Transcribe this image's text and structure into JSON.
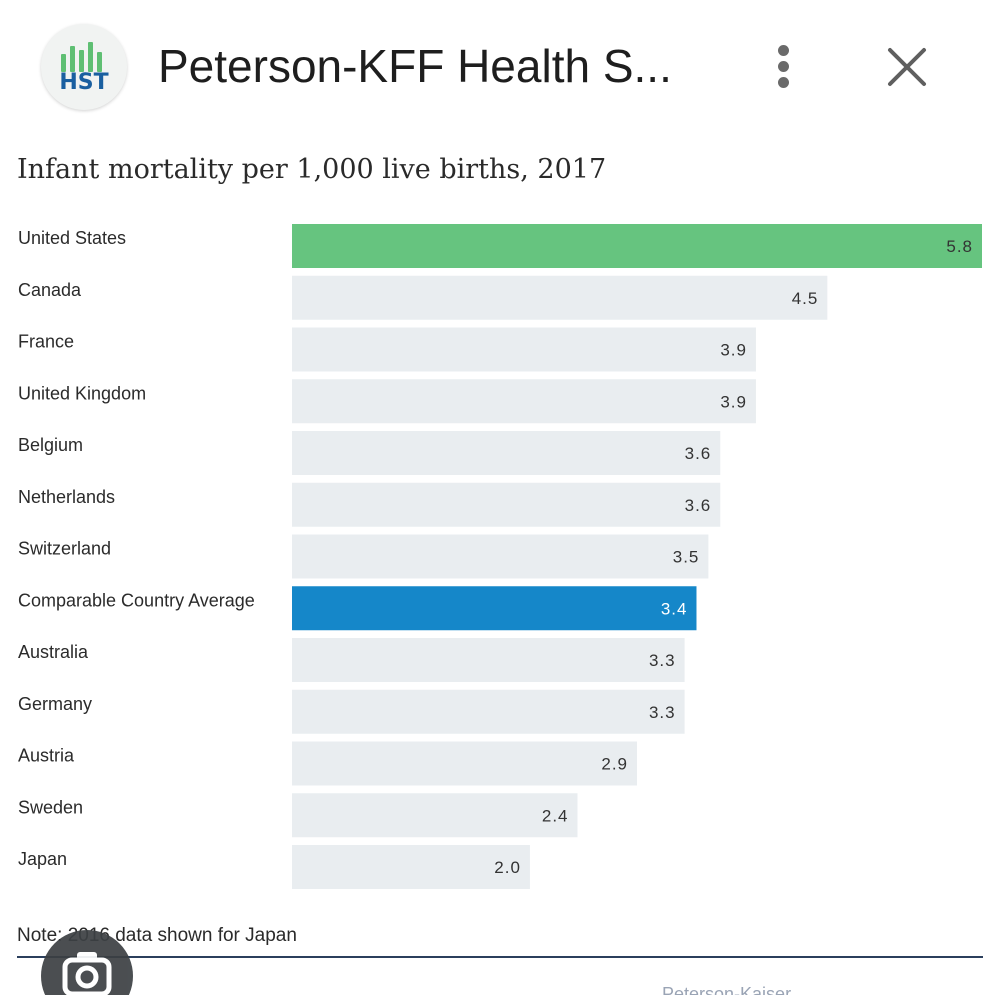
{
  "header": {
    "logo_text": "HST",
    "app_title": "Peterson-KFF Health S...",
    "more_icon": "more-vertical-icon",
    "close_icon": "close-icon"
  },
  "chart_data": {
    "type": "bar",
    "orientation": "horizontal",
    "title": "Infant mortality per 1,000 live births, 2017",
    "categories": [
      "United States",
      "Canada",
      "France",
      "United Kingdom",
      "Belgium",
      "Netherlands",
      "Switzerland",
      "Comparable Country Average",
      "Australia",
      "Germany",
      "Austria",
      "Sweden",
      "Japan"
    ],
    "values": [
      5.8,
      4.5,
      3.9,
      3.9,
      3.6,
      3.6,
      3.5,
      3.4,
      3.3,
      3.3,
      2.9,
      2.4,
      2.0
    ],
    "value_labels": [
      "5.8",
      "4.5",
      "3.9",
      "3.9",
      "3.6",
      "3.6",
      "3.5",
      "3.4",
      "3.3",
      "3.3",
      "2.9",
      "2.4",
      "2.0"
    ],
    "xlim": [
      0,
      5.8
    ],
    "grid": false,
    "legend": "none",
    "colors": {
      "default": "#e9edf0",
      "United States": "#66c47f",
      "Comparable Country Average": "#1587c9",
      "default_label": "#333333",
      "highlight_label_us": "#333333",
      "highlight_label_avg": "#ffffff"
    }
  },
  "note": "Note: 2016 data shown for Japan",
  "footer": {
    "text": "Peterson-Kaiser"
  },
  "overlay": {
    "lens_icon": "camera-lens-icon"
  }
}
